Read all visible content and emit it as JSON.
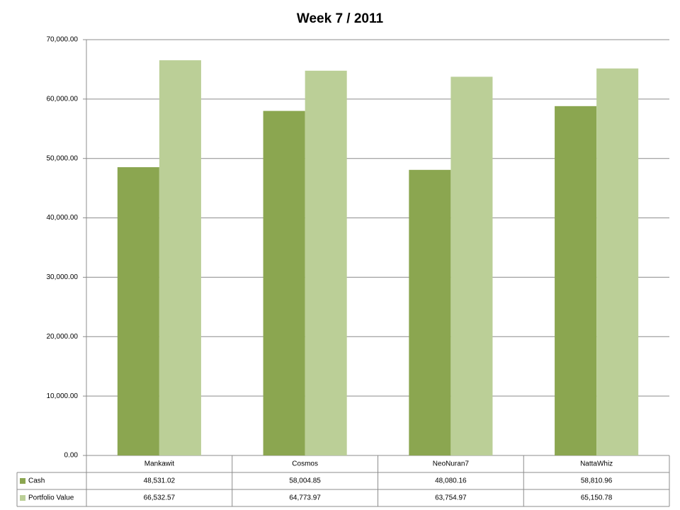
{
  "chart_data": {
    "type": "bar",
    "title": "Week 7 / 2011",
    "categories": [
      "Mankawit",
      "Cosmos",
      "NeoNuran7",
      "NattaWhiz"
    ],
    "series": [
      {
        "name": "Cash",
        "color": "#8ba650",
        "values": [
          48531.02,
          58004.85,
          48080.16,
          58810.96
        ],
        "value_labels": [
          "48,531.02",
          "58,004.85",
          "48,080.16",
          "58,810.96"
        ]
      },
      {
        "name": "Portfolio Value",
        "color": "#bbcf97",
        "values": [
          66532.57,
          64773.97,
          63754.97,
          65150.78
        ],
        "value_labels": [
          "66,532.57",
          "64,773.97",
          "63,754.97",
          "65,150.78"
        ]
      }
    ],
    "ylim": [
      0,
      70000
    ],
    "yticks": [
      {
        "value": 0,
        "label": "0.00"
      },
      {
        "value": 10000,
        "label": "10,000.00"
      },
      {
        "value": 20000,
        "label": "20,000.00"
      },
      {
        "value": 30000,
        "label": "30,000.00"
      },
      {
        "value": 40000,
        "label": "40,000.00"
      },
      {
        "value": 50000,
        "label": "50,000.00"
      },
      {
        "value": 60000,
        "label": "60,000.00"
      },
      {
        "value": 70000,
        "label": "70,000.00"
      }
    ],
    "grid": true
  }
}
